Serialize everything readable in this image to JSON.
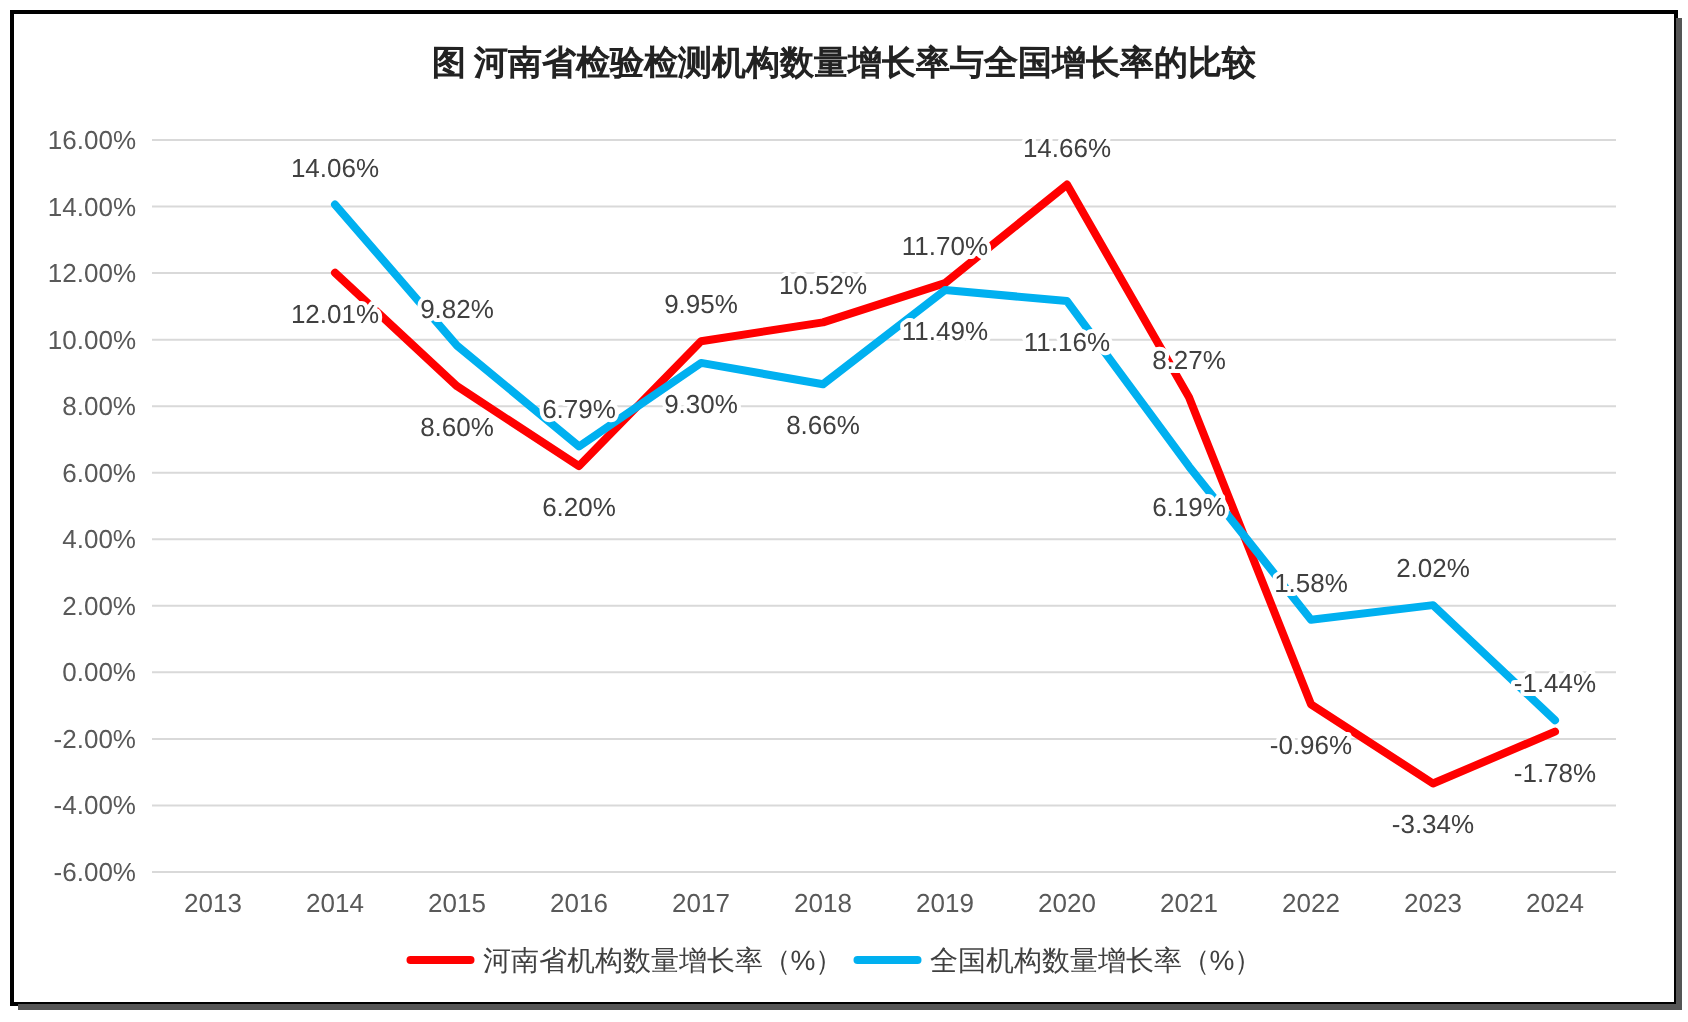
{
  "chart_data": {
    "type": "line",
    "title": "图  河南省检验检测机构数量增长率与全国增长率的比较",
    "categories": [
      "2013",
      "2014",
      "2015",
      "2016",
      "2017",
      "2018",
      "2019",
      "2020",
      "2021",
      "2022",
      "2023",
      "2024"
    ],
    "series": [
      {
        "name": "河南省机构数量增长率（%）",
        "color": "#ff0000",
        "values": [
          null,
          12.01,
          8.6,
          6.2,
          9.95,
          10.52,
          11.7,
          14.66,
          8.27,
          -0.96,
          -3.34,
          -1.78
        ],
        "value_labels": [
          null,
          "12.01%",
          "8.60%",
          "6.20%",
          "9.95%",
          "10.52%",
          "11.70%",
          "14.66%",
          "8.27%",
          "-0.96%",
          "-3.34%",
          "-1.78%"
        ]
      },
      {
        "name": "全国机构数量增长率（%）",
        "color": "#00b0f0",
        "values": [
          null,
          14.06,
          9.82,
          6.79,
          9.3,
          8.66,
          11.49,
          11.16,
          6.19,
          1.58,
          2.02,
          -1.44
        ],
        "value_labels": [
          null,
          "14.06%",
          "9.82%",
          "6.79%",
          "9.30%",
          "8.66%",
          "11.49%",
          "11.16%",
          "6.19%",
          "1.58%",
          "2.02%",
          "-1.44%"
        ]
      }
    ],
    "ylim": [
      -6,
      16
    ],
    "yticks": [
      {
        "value": -6,
        "label": "-6.00%"
      },
      {
        "value": -4,
        "label": "-4.00%"
      },
      {
        "value": -2,
        "label": "-2.00%"
      },
      {
        "value": 0,
        "label": "0.00%"
      },
      {
        "value": 2,
        "label": "2.00%"
      },
      {
        "value": 4,
        "label": "4.00%"
      },
      {
        "value": 6,
        "label": "6.00%"
      },
      {
        "value": 8,
        "label": "8.00%"
      },
      {
        "value": 10,
        "label": "10.00%"
      },
      {
        "value": 12,
        "label": "12.00%"
      },
      {
        "value": 14,
        "label": "14.00%"
      },
      {
        "value": 16,
        "label": "16.00%"
      }
    ],
    "grid": "y",
    "legend": "bottom",
    "marker": "none",
    "line_style": "solid"
  }
}
